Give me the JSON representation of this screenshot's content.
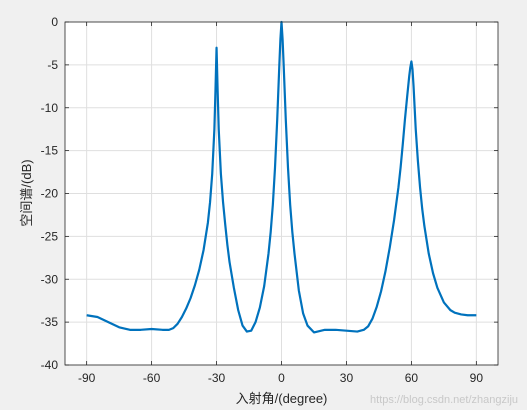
{
  "chart_data": {
    "type": "line",
    "xlabel": "入射角/(degree)",
    "ylabel": "空间谱/(dB)",
    "xlim": [
      -100,
      100
    ],
    "ylim": [
      -40,
      0
    ],
    "xticks": [
      -90,
      -60,
      -30,
      0,
      30,
      60,
      90
    ],
    "yticks": [
      0,
      -5,
      -10,
      -15,
      -20,
      -25,
      -30,
      -35,
      -40
    ],
    "grid": true,
    "series": [
      {
        "color": "#0072bd",
        "x": [
          -90,
          -85,
          -80,
          -75,
          -70,
          -65,
          -60,
          -55,
          -52,
          -50,
          -48,
          -46,
          -44,
          -42,
          -40,
          -38,
          -36,
          -34,
          -33,
          -32,
          -31,
          -30.5,
          -30,
          -29.5,
          -29,
          -28,
          -27,
          -26,
          -25,
          -24,
          -22,
          -20,
          -18,
          -16,
          -14,
          -12,
          -10,
          -8,
          -6,
          -5,
          -4,
          -3,
          -2,
          -1,
          -0.5,
          0,
          0.5,
          1,
          2,
          3,
          4,
          5,
          6,
          8,
          10,
          12,
          15,
          20,
          25,
          30,
          35,
          38,
          40,
          42,
          44,
          46,
          48,
          50,
          52,
          54,
          55,
          56,
          57,
          58,
          59,
          59.5,
          60,
          60.5,
          61,
          62,
          63,
          64,
          65,
          66,
          68,
          70,
          72,
          75,
          78,
          80,
          83,
          86,
          90
        ],
        "y": [
          -34.2,
          -34.4,
          -35.0,
          -35.6,
          -35.9,
          -35.9,
          -35.8,
          -35.9,
          -35.9,
          -35.7,
          -35.2,
          -34.4,
          -33.4,
          -32.2,
          -30.7,
          -28.9,
          -26.6,
          -23.4,
          -21.0,
          -17.7,
          -12.5,
          -8.0,
          -3.0,
          -8.0,
          -12.5,
          -17.7,
          -21.0,
          -23.6,
          -26.0,
          -28.0,
          -31.0,
          -33.6,
          -35.4,
          -36.1,
          -36.0,
          -35.0,
          -33.3,
          -30.8,
          -27.0,
          -24.5,
          -21.3,
          -17.0,
          -11.5,
          -5.0,
          -2.0,
          0.0,
          -2.0,
          -5.0,
          -11.5,
          -17.0,
          -21.3,
          -24.5,
          -27.0,
          -31.3,
          -34.0,
          -35.4,
          -36.2,
          -35.9,
          -35.9,
          -36.0,
          -36.1,
          -35.9,
          -35.5,
          -34.6,
          -33.2,
          -31.4,
          -29.1,
          -26.3,
          -23.1,
          -19.3,
          -17.0,
          -14.3,
          -11.4,
          -8.8,
          -6.3,
          -5.3,
          -4.6,
          -5.5,
          -7.5,
          -12.5,
          -16.2,
          -19.3,
          -21.8,
          -23.8,
          -27.0,
          -29.3,
          -31.0,
          -32.7,
          -33.6,
          -33.9,
          -34.1,
          -34.2,
          -34.2
        ]
      }
    ]
  },
  "watermark": "https://blog.csdn.net/zhangziju"
}
